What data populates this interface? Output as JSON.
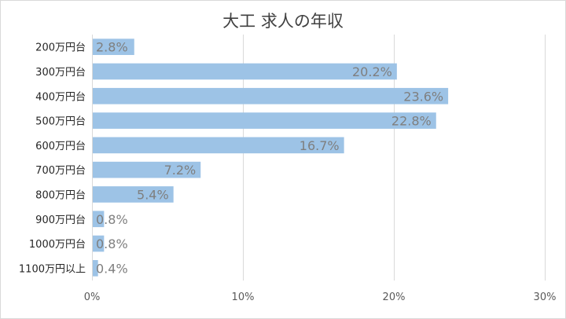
{
  "chart_data": {
    "type": "bar",
    "orientation": "horizontal",
    "title": "大工 求人の年収",
    "categories": [
      "200万円台",
      "300万円台",
      "400万円台",
      "500万円台",
      "600万円台",
      "700万円台",
      "800万円台",
      "900万円台",
      "1000万円台",
      "1100万円以上"
    ],
    "values": [
      2.8,
      20.2,
      23.6,
      22.8,
      16.7,
      7.2,
      5.4,
      0.8,
      0.8,
      0.4
    ],
    "data_labels": [
      "2.8%",
      "20.2%",
      "23.6%",
      "22.8%",
      "16.7%",
      "7.2%",
      "5.4%",
      "0.8%",
      "0.8%",
      "0.4%"
    ],
    "xlim": [
      0,
      30
    ],
    "x_ticks": [
      0,
      10,
      20,
      30
    ],
    "x_tick_labels": [
      "0%",
      "10%",
      "20%",
      "30%"
    ],
    "grid": "vertical",
    "legend": "none",
    "bar_color": "#9dc3e6",
    "grid_color": "#d9d9d9",
    "label_color": "#7f7f7f"
  }
}
